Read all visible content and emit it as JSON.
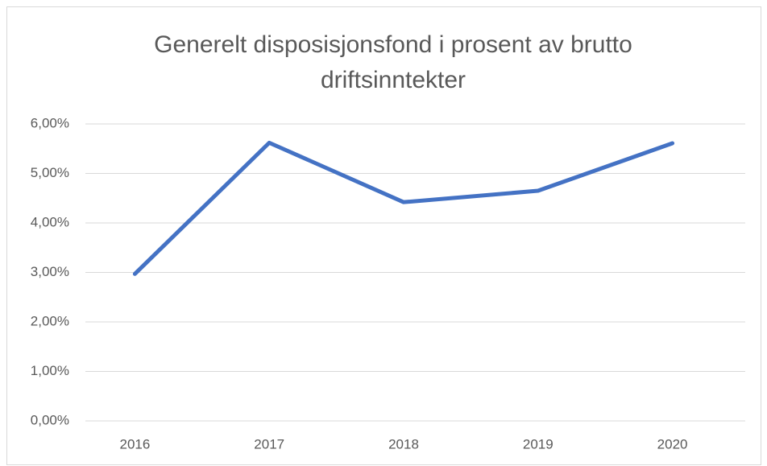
{
  "chart_data": {
    "type": "line",
    "title": "Generelt disposisjonsfond i prosent av brutto driftsinntekter",
    "categories": [
      "2016",
      "2017",
      "2018",
      "2019",
      "2020"
    ],
    "series": [
      {
        "color": "#4472c4",
        "values": [
          2.97,
          5.62,
          4.42,
          4.65,
          5.61
        ]
      }
    ],
    "ylim": [
      0,
      6
    ],
    "yticks": [
      {
        "value": 0,
        "label": "0,00%"
      },
      {
        "value": 1,
        "label": "1,00%"
      },
      {
        "value": 2,
        "label": "2,00%"
      },
      {
        "value": 3,
        "label": "3,00%"
      },
      {
        "value": 4,
        "label": "4,00%"
      },
      {
        "value": 5,
        "label": "5,00%"
      },
      {
        "value": 6,
        "label": "6,00%"
      }
    ],
    "grid": true
  }
}
